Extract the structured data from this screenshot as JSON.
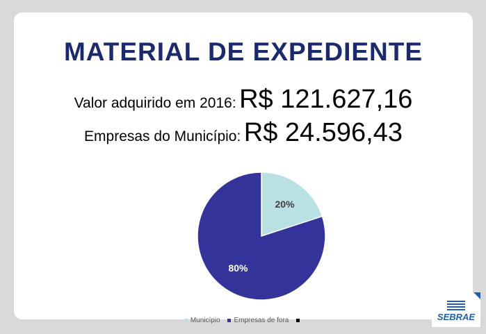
{
  "title": "MATERIAL DE EXPEDIENTE",
  "lines": [
    {
      "label": "Valor adquirido em 2016:",
      "value": "R$ 121.627,16"
    },
    {
      "label": "Empresas do Município:",
      "value": "R$ 24.596,43"
    }
  ],
  "chart_data": {
    "type": "pie",
    "categories": [
      "Município",
      "Empresas de fora",
      ""
    ],
    "values": [
      20,
      80,
      0
    ],
    "labels": [
      "20%",
      "80%"
    ],
    "colors": [
      "#b9e0e3",
      "#33339a",
      "#000000"
    ],
    "legend_position": "bottom"
  },
  "logo": {
    "text": "SEBRAE"
  }
}
